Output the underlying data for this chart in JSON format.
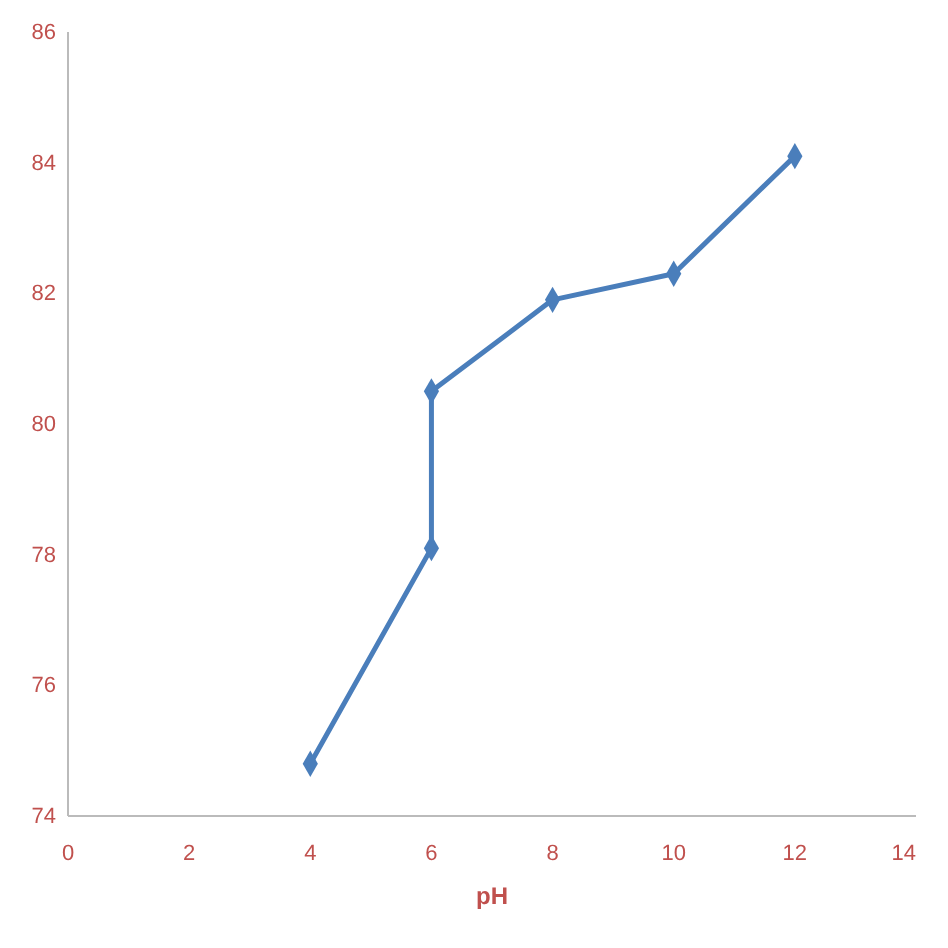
{
  "chart_data": {
    "type": "line",
    "xlabel": "pH",
    "x": [
      4,
      6,
      6,
      8,
      10,
      12
    ],
    "series": [
      {
        "color": "#4a7ebb",
        "values": [
          74.8,
          78.1,
          80.5,
          81.9,
          82.3,
          84.1
        ]
      }
    ],
    "xlim": [
      0,
      14
    ],
    "xticks": [
      0,
      2,
      4,
      6,
      8,
      10,
      12,
      14
    ],
    "ylim": [
      74,
      86
    ],
    "yticks": [
      74,
      76,
      78,
      80,
      82,
      84,
      86
    ],
    "grid": false,
    "marker": "diamond",
    "line_style": "solid"
  }
}
